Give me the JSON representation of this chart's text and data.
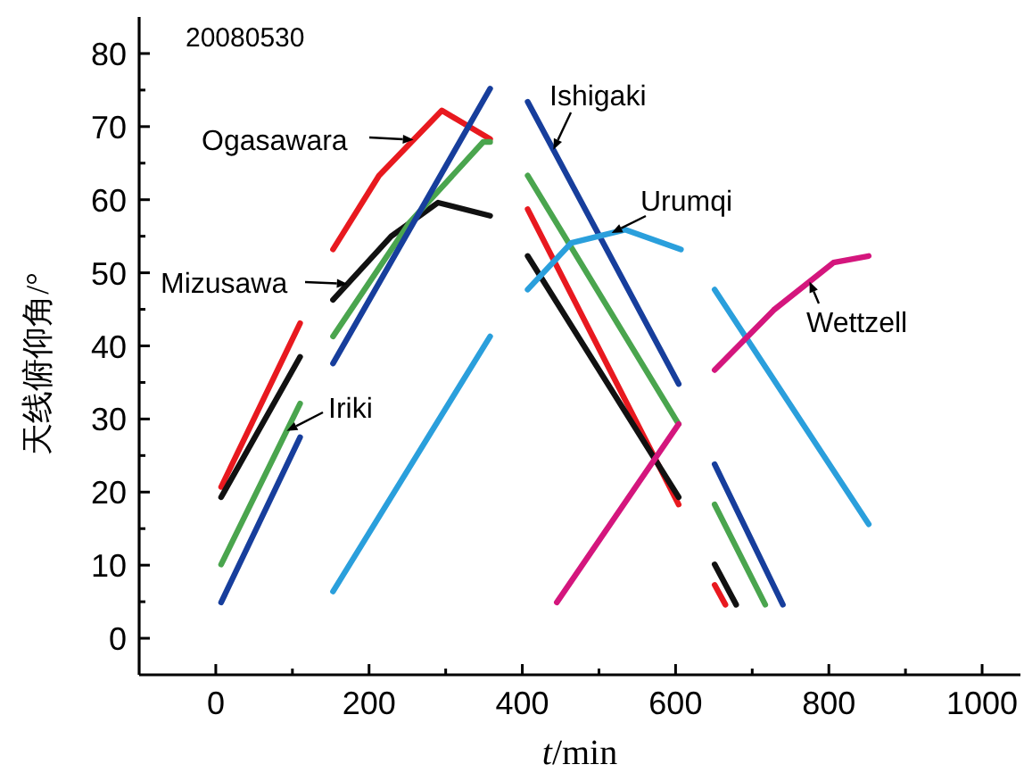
{
  "chart_data": {
    "type": "line",
    "title": "20080530",
    "xlabel": "*t*/min",
    "ylabel": "天线俯仰角/°",
    "xlim": [
      -100,
      1050
    ],
    "ylim": [
      -5,
      85
    ],
    "xticks": [
      0,
      {
        "value": 100,
        "label": null
      },
      200,
      {
        "value": 300,
        "label": null
      },
      400,
      {
        "value": 500,
        "label": null
      },
      600,
      {
        "value": 700,
        "label": null
      },
      800,
      {
        "value": 900,
        "label": null
      },
      1000
    ],
    "yticks": [
      0,
      {
        "value": 5,
        "label": null
      },
      10,
      {
        "value": 15,
        "label": null
      },
      20,
      {
        "value": 25,
        "label": null
      },
      30,
      {
        "value": 35,
        "label": null
      },
      40,
      {
        "value": 45,
        "label": null
      },
      50,
      {
        "value": 55,
        "label": null
      },
      60,
      {
        "value": 65,
        "label": null
      },
      70,
      {
        "value": 75,
        "label": null
      },
      80
    ],
    "series": [
      {
        "name": "Ogasawara",
        "color": "#e8191f",
        "x": [
          7,
          110,
          null,
          153,
          213,
          295,
          358,
          null,
          407,
          604,
          null,
          651,
          665
        ],
        "values": [
          20.7,
          43.1,
          null,
          53.2,
          63.3,
          72.2,
          68.3,
          null,
          58.7,
          18.3,
          null,
          7.3,
          4.6
        ]
      },
      {
        "name": "Mizusawa",
        "color": "#111111",
        "x": [
          7,
          110,
          null,
          153,
          229,
          290,
          358,
          null,
          407,
          604,
          null,
          651,
          679
        ],
        "values": [
          19.3,
          38.5,
          null,
          46.3,
          55,
          59.6,
          57.8,
          null,
          52.3,
          19.3,
          null,
          10.1,
          4.6
        ]
      },
      {
        "name": "Iriki",
        "color": "#4aa54e",
        "x": [
          7,
          110,
          null,
          153,
          253,
          349,
          358,
          null,
          407,
          604,
          null,
          651,
          717
        ],
        "values": [
          10.1,
          32.1,
          null,
          41.3,
          56.9,
          67.9,
          67.9,
          null,
          63.3,
          29.3,
          null,
          18.3,
          4.6
        ]
      },
      {
        "name": "Ishigaki",
        "color": "#173e9c",
        "x": [
          7,
          110,
          null,
          153,
          358,
          null,
          407,
          604,
          null,
          651,
          740
        ],
        "values": [
          4.9,
          27.5,
          null,
          37.6,
          75.2,
          null,
          73.4,
          34.8,
          null,
          23.8,
          4.6
        ]
      },
      {
        "name": "Urumqi",
        "color": "#2a9fdc",
        "x": [
          153,
          358,
          null,
          407,
          464,
          534,
          607,
          null,
          651,
          852
        ],
        "values": [
          6.4,
          41.3,
          null,
          47.7,
          54.1,
          55.9,
          53.2,
          null,
          47.7,
          15.6
        ]
      },
      {
        "name": "Wettzell",
        "color": "#d4167d",
        "x": [
          445,
          604,
          null,
          651,
          728,
          806,
          852
        ],
        "values": [
          4.9,
          29.3,
          null,
          36.7,
          44.9,
          51.4,
          52.3
        ]
      }
    ]
  }
}
